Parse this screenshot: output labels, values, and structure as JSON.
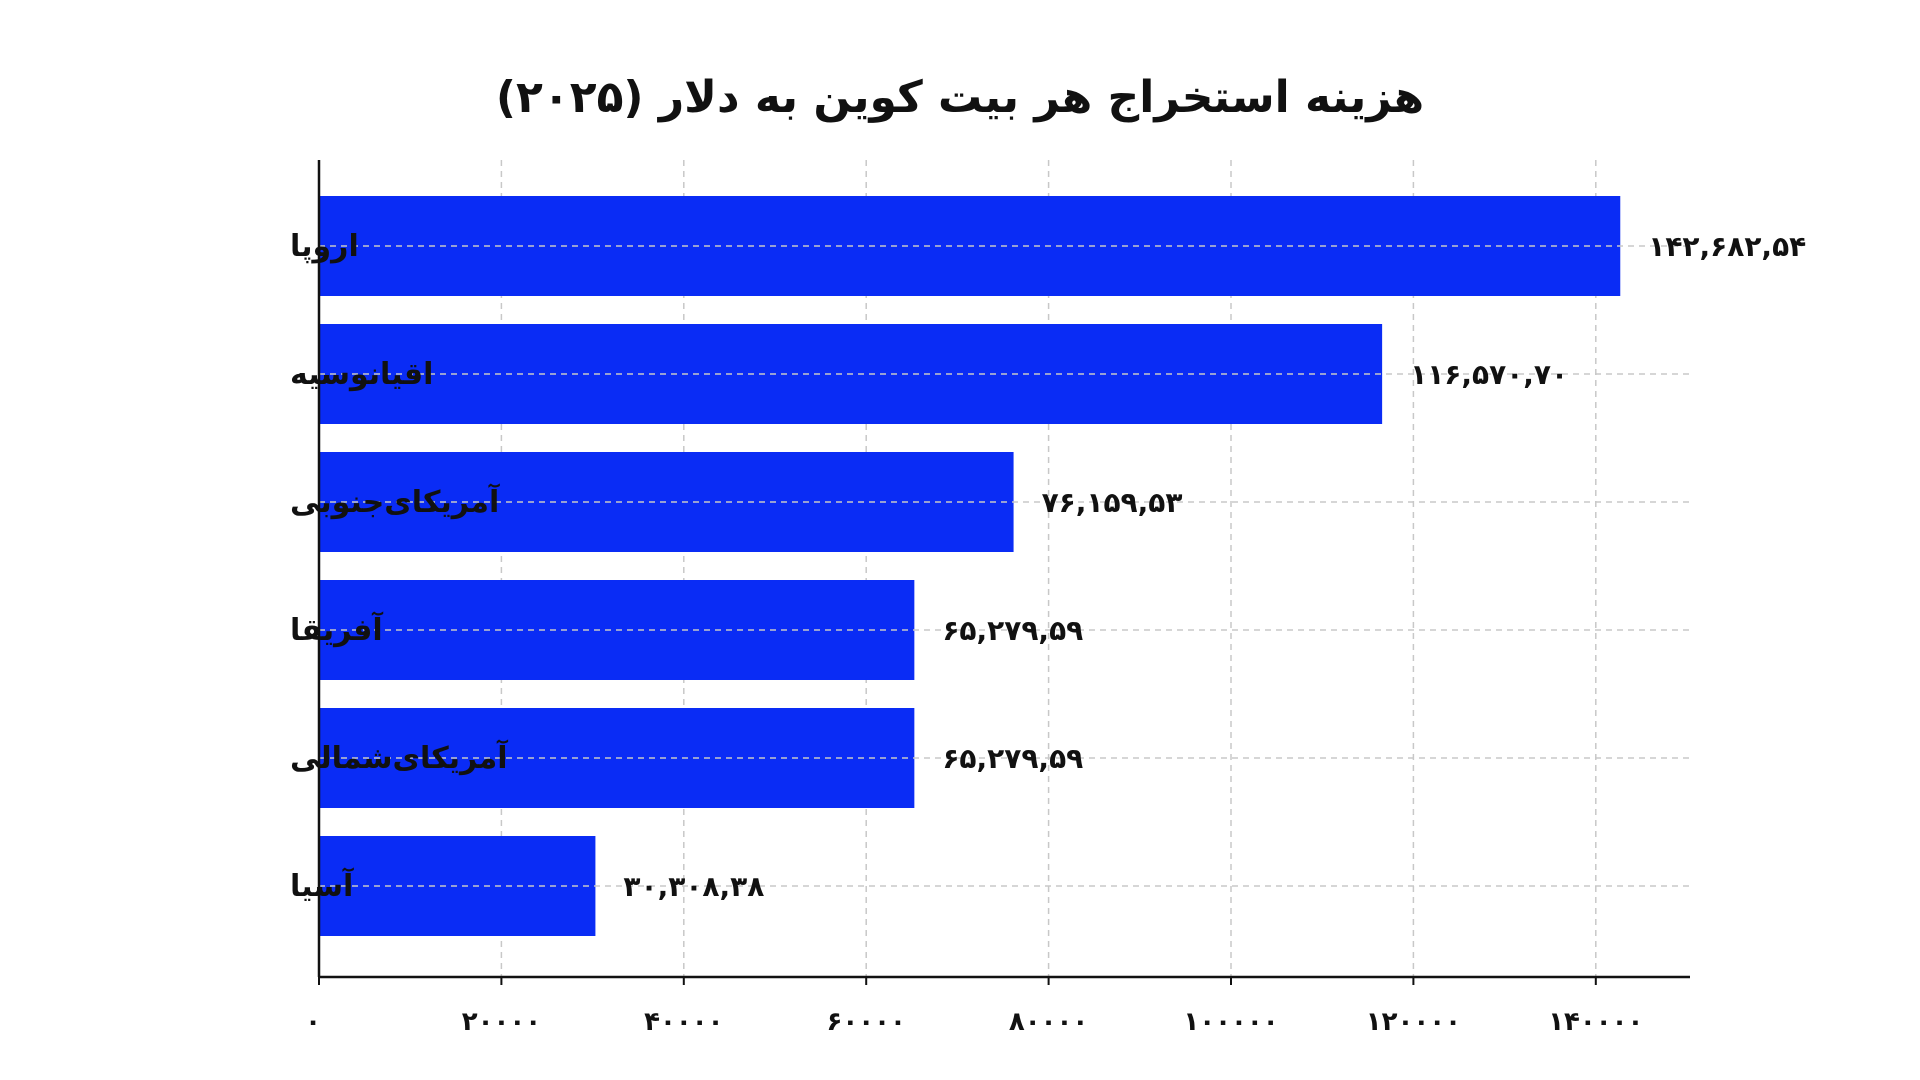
{
  "chart_data": {
    "type": "bar",
    "orientation": "horizontal",
    "title": "هزینه استخراج هر بیت کوین به دلار (۲۰۲۵)",
    "categories": [
      "اروپا",
      "اقیانوسیه",
      "آمریکای‌جنوبی",
      "آفریقا",
      "آمریکای‌شمالی",
      "آسیا"
    ],
    "values": [
      142682.54,
      116570.7,
      76159.53,
      65279.59,
      65279.59,
      30308.38
    ],
    "value_labels": [
      "۱۴۲,۶۸۲,۵۴",
      "۱۱۶,۵۷۰,۷۰",
      "۷۶,۱۵۹,۵۳",
      "۶۵,۲۷۹,۵۹",
      "۶۵,۲۷۹,۵۹",
      "۳۰,۳۰۸,۳۸"
    ],
    "xlim": [
      0,
      150000
    ],
    "x_ticks": [
      0,
      20000,
      40000,
      60000,
      80000,
      100000,
      120000,
      140000
    ],
    "x_tick_labels": [
      "۰",
      "۲۰۰۰۰",
      "۴۰۰۰۰",
      "۶۰۰۰۰",
      "۸۰۰۰۰",
      "۱۰۰۰۰۰",
      "۱۲۰۰۰۰",
      "۱۴۰۰۰۰"
    ],
    "grid": true,
    "bar_color": "#0a2cf5",
    "grid_color": "#c8c8c8",
    "axis_color": "#111111"
  }
}
